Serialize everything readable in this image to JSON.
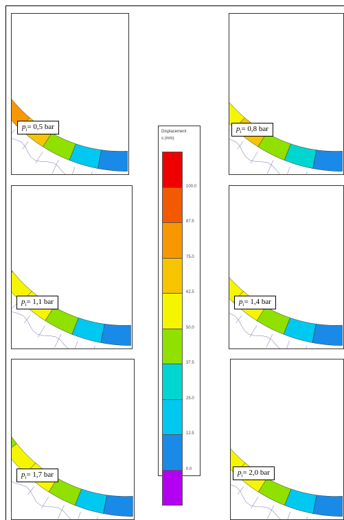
{
  "legend": {
    "title_line1": "Displacement",
    "title_line2": "s (mm)",
    "colors": [
      "#ee0000",
      "#f35a00",
      "#f79800",
      "#f7c400",
      "#f5f500",
      "#90e000",
      "#00d6d0",
      "#00c8f0",
      "#1a8ae8",
      "#b400f0"
    ],
    "ticks": [
      "100.0",
      "87.5",
      "75.0",
      "62.5",
      "50.0",
      "37.5",
      "25.0",
      "12.5",
      "0.0"
    ]
  },
  "panels": [
    {
      "pressure": "= 0,5 bar",
      "symbol": "p",
      "subscript": "i",
      "palette": [
        "#1a8ae8",
        "#00c8f0",
        "#90e000",
        "#f7c400",
        "#f79800",
        "#f79800",
        "#f79800"
      ]
    },
    {
      "pressure": "= 0,8 bar",
      "symbol": "p",
      "subscript": "i",
      "palette": [
        "#1a8ae8",
        "#00d6d0",
        "#90e000",
        "#f7c400",
        "#f5f500",
        "#f5f500",
        "#f7c400"
      ]
    },
    {
      "pressure": "= 1,1 bar",
      "symbol": "p",
      "subscript": "i",
      "palette": [
        "#1a8ae8",
        "#00c8f0",
        "#90e000",
        "#f5f500",
        "#f5f500",
        "#90e000",
        "#00d6d0"
      ]
    },
    {
      "pressure": "= 1,4 bar",
      "symbol": "p",
      "subscript": "i",
      "palette": [
        "#1a8ae8",
        "#00c8f0",
        "#90e000",
        "#f5f500",
        "#f5f500",
        "#90e000",
        "#00d6d0"
      ]
    },
    {
      "pressure": "= 1,7 bar",
      "symbol": "p",
      "subscript": "i",
      "palette": [
        "#1a8ae8",
        "#00c8f0",
        "#90e000",
        "#f5f500",
        "#f5f500",
        "#90e000",
        "#00d6d0"
      ]
    },
    {
      "pressure": "= 2,0 bar",
      "symbol": "p",
      "subscript": "i",
      "palette": [
        "#1a8ae8",
        "#00c8f0",
        "#90e000",
        "#f5f500",
        "#f5f500",
        "#90e000",
        "#00d6d0"
      ]
    }
  ]
}
